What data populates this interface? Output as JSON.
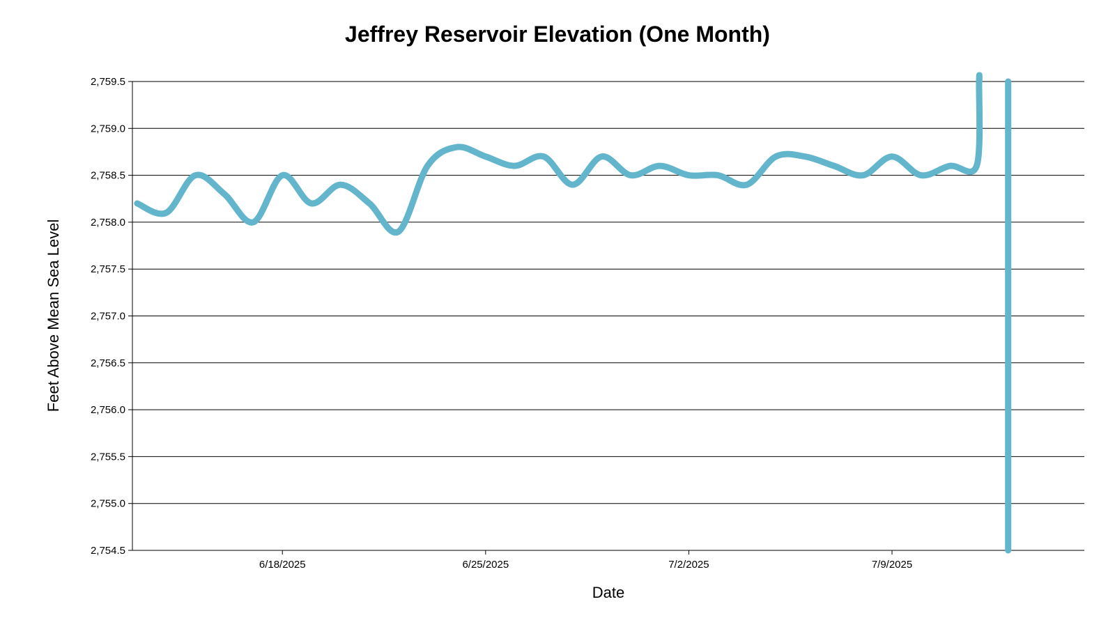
{
  "chart_data": {
    "type": "line",
    "title": "Jeffrey Reservoir Elevation (One Month)",
    "xlabel": "Date",
    "ylabel": "Feet Above Mean Sea Level",
    "ylim": [
      2754.5,
      2759.5
    ],
    "xlim": [
      "2025-06-12T20:00",
      "2025-07-15T15:00"
    ],
    "y_ticks": [
      2754.5,
      2755.0,
      2755.5,
      2756.0,
      2756.5,
      2757.0,
      2757.5,
      2758.0,
      2758.5,
      2759.0,
      2759.5
    ],
    "y_tick_labels": [
      "2,754.5",
      "2,755.0",
      "2,755.5",
      "2,756.0",
      "2,756.5",
      "2,757.0",
      "2,757.5",
      "2,758.0",
      "2,758.5",
      "2,759.0",
      "2,759.5"
    ],
    "x_ticks": [
      "2025-06-18",
      "2025-06-25",
      "2025-07-02",
      "2025-07-09"
    ],
    "x_tick_labels": [
      "6/18/2025",
      "6/25/2025",
      "7/2/2025",
      "7/9/2025"
    ],
    "grid": "horizontal",
    "line_color": "#62b5cb",
    "series": [
      {
        "x": [
          "2025-06-13",
          "2025-06-14",
          "2025-06-15",
          "2025-06-16",
          "2025-06-17",
          "2025-06-18",
          "2025-06-19",
          "2025-06-20",
          "2025-06-21",
          "2025-06-22",
          "2025-06-23",
          "2025-06-24",
          "2025-06-25",
          "2025-06-26",
          "2025-06-27",
          "2025-06-28",
          "2025-06-29",
          "2025-06-30",
          "2025-07-01",
          "2025-07-02",
          "2025-07-03",
          "2025-07-04",
          "2025-07-05",
          "2025-07-06",
          "2025-07-07",
          "2025-07-08",
          "2025-07-09",
          "2025-07-10",
          "2025-07-11",
          "2025-07-11T22:00",
          "2025-07-12",
          "2025-07-12T00:10"
        ],
        "y": [
          2758.2,
          2758.1,
          2758.5,
          2758.3,
          2758.0,
          2758.5,
          2758.2,
          2758.4,
          2758.2,
          2757.9,
          2758.6,
          2758.8,
          2758.7,
          2758.6,
          2758.7,
          2758.4,
          2758.7,
          2758.5,
          2758.6,
          2758.5,
          2758.5,
          2758.4,
          2758.7,
          2758.7,
          2758.6,
          2758.5,
          2758.7,
          2758.5,
          2758.6,
          2758.6,
          2759.5,
          2759.5
        ]
      },
      {
        "x": [
          "2025-07-13",
          "2025-07-13"
        ],
        "y": [
          2759.5,
          2754.5
        ]
      }
    ]
  }
}
